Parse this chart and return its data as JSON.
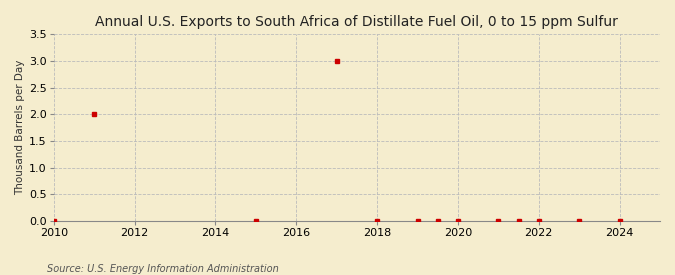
{
  "title": "Annual U.S. Exports to South Africa of Distillate Fuel Oil, 0 to 15 ppm Sulfur",
  "ylabel": "Thousand Barrels per Day",
  "source": "Source: U.S. Energy Information Administration",
  "background_color": "#f5edce",
  "plot_background_color": "#f5edce",
  "marker_color": "#cc0000",
  "grid_color": "#bbbbbb",
  "xlim": [
    2010,
    2025
  ],
  "ylim": [
    0,
    3.5
  ],
  "yticks": [
    0.0,
    0.5,
    1.0,
    1.5,
    2.0,
    2.5,
    3.0,
    3.5
  ],
  "xticks": [
    2010,
    2012,
    2014,
    2016,
    2018,
    2020,
    2022,
    2024
  ],
  "data_x": [
    2010,
    2011,
    2015,
    2017,
    2018,
    2019,
    2019.5,
    2020,
    2021,
    2021.5,
    2022,
    2023,
    2024
  ],
  "data_y": [
    0.0,
    2.0,
    0.0,
    3.0,
    0.0,
    0.0,
    0.0,
    0.0,
    0.0,
    0.0,
    0.0,
    0.0,
    0.0
  ]
}
